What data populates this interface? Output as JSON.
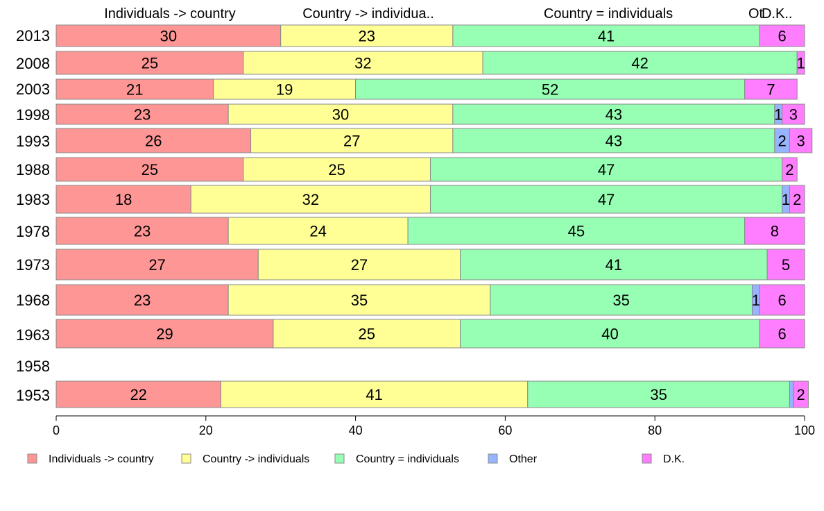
{
  "chart_data": {
    "type": "bar",
    "orientation": "horizontal",
    "stacked": true,
    "categories": [
      "2013",
      "2008",
      "2003",
      "1998",
      "1993",
      "1988",
      "1983",
      "1978",
      "1973",
      "1968",
      "1963",
      "1958",
      "1953"
    ],
    "series": [
      {
        "name": "Individuals -> country",
        "color": "#ff9696",
        "values": [
          30,
          25,
          21,
          23,
          26,
          25,
          18,
          23,
          27,
          23,
          29,
          null,
          22
        ]
      },
      {
        "name": "Country -> individuals",
        "color": "#ffff96",
        "values": [
          23,
          32,
          19,
          30,
          27,
          25,
          32,
          24,
          27,
          35,
          25,
          null,
          41
        ]
      },
      {
        "name": "Country = individuals",
        "color": "#96ffb4",
        "values": [
          41,
          42,
          52,
          43,
          43,
          47,
          47,
          45,
          41,
          35,
          40,
          null,
          35
        ]
      },
      {
        "name": "Other",
        "color": "#96b4ff",
        "values": [
          0,
          0,
          0,
          1,
          2,
          0,
          1,
          0,
          0,
          1,
          0,
          null,
          0.5
        ]
      },
      {
        "name": "D.K.",
        "color": "#ff7dff",
        "values": [
          6,
          1,
          7,
          3,
          3,
          2,
          2,
          8,
          5,
          6,
          6,
          null,
          2
        ]
      }
    ],
    "top_labels": [
      "Individuals -> country",
      "Country -> individua..",
      "Country = individuals",
      "Ot",
      "D.K.."
    ],
    "xlim": [
      0,
      100
    ],
    "xticks": [
      "0",
      "20",
      "40",
      "60",
      "80",
      "100"
    ],
    "grid": false,
    "legend_position": "bottom"
  }
}
